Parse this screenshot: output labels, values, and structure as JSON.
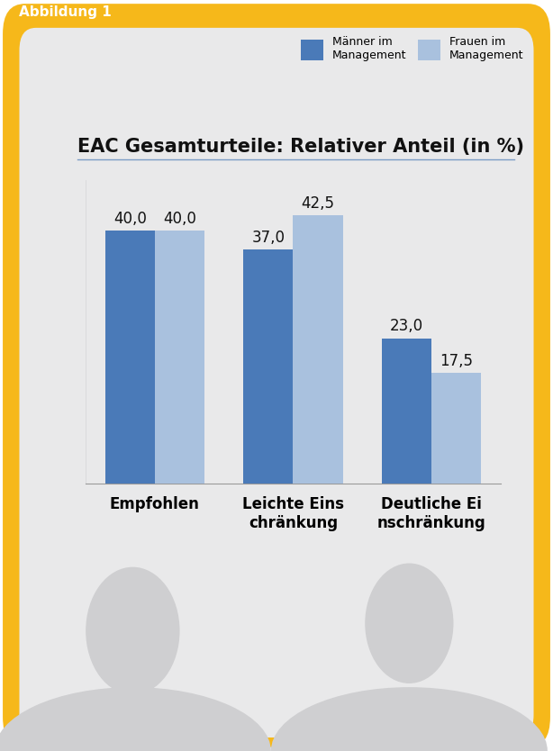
{
  "chart_data": {
    "type": "bar",
    "title": "EAC Gesamturteile: Relativer Anteil (in %)",
    "annotations": [
      "Abbildung 1"
    ],
    "categories": [
      "Empfohlen",
      "Leichte Einschränkung",
      "Deutliche Einschränkung"
    ],
    "series": [
      {
        "name": "Männer im Management",
        "color": "#4a7ab8",
        "values": [
          40.0,
          37.0,
          23.0
        ],
        "value_labels": [
          "40,0",
          "37,0",
          "23,0"
        ]
      },
      {
        "name": "Frauen im Management",
        "color": "#a9c1de",
        "values": [
          40.0,
          42.5,
          17.5
        ],
        "value_labels": [
          "40,0",
          "42,5",
          "17,5"
        ]
      }
    ],
    "ylim": [
      0,
      48
    ],
    "yticks": [],
    "grid": false,
    "legend": "upper right",
    "data_labels": true,
    "tick_labels": "x"
  }
}
